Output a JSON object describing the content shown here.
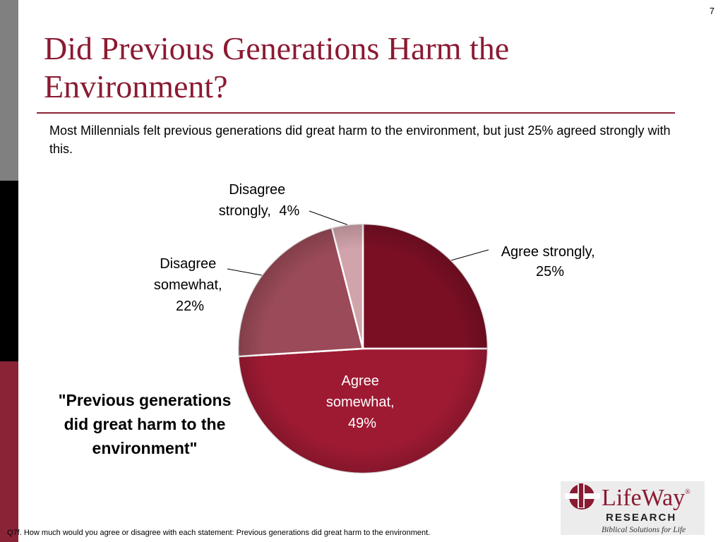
{
  "slide": {
    "page_number": "7",
    "title": "Did Previous Generations Harm the Environment?",
    "subtitle": "Most Millennials felt previous generations did great harm to the environment, but just 25% agreed strongly with this.",
    "quote": "\"Previous generations did great harm to the environment\"",
    "footnote": "Q7f. How much would you agree or disagree with each statement:  Previous generations did great harm to the environment."
  },
  "logo": {
    "brand": "LifeWay",
    "registered": "®",
    "division": "RESEARCH",
    "tagline": "Biblical Solutions for Life"
  },
  "colors": {
    "title": "#8b1a32",
    "accent": "#8b2336"
  },
  "chart_data": {
    "type": "pie",
    "title": "",
    "slices": [
      {
        "label": "Agree strongly",
        "value": 25,
        "display": "25%",
        "color": "#7a0f24"
      },
      {
        "label": "Agree somewhat",
        "value": 49,
        "display": "49%",
        "color": "#9e1a33"
      },
      {
        "label": "Disagree somewhat",
        "value": 22,
        "display": "22%",
        "color": "#9a4a58"
      },
      {
        "label": "Disagree strongly",
        "value": 4,
        "display": "4%",
        "color": "#d1a3aa"
      }
    ]
  }
}
